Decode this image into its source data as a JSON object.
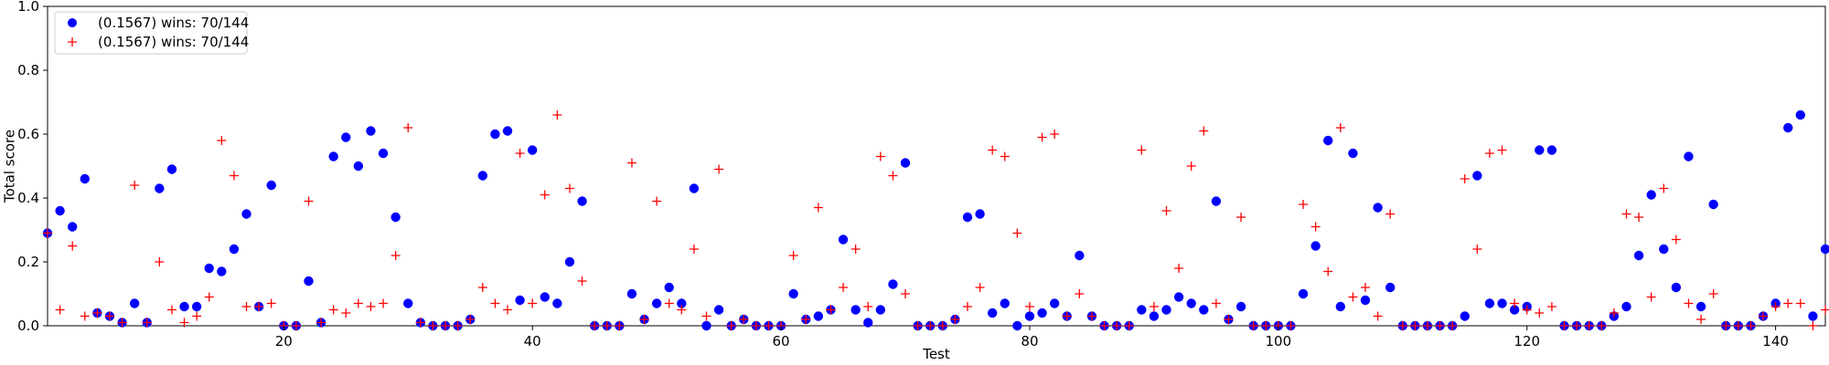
{
  "chart_data": {
    "type": "scatter",
    "xlabel": "Test",
    "ylabel": "Total score",
    "xlim": [
      1,
      144
    ],
    "ylim": [
      0,
      1.0
    ],
    "xticks": [
      20,
      40,
      60,
      80,
      100,
      120,
      140
    ],
    "yticks": [
      0.0,
      0.2,
      0.4,
      0.6,
      0.8,
      1.0
    ],
    "xtick_labels": [
      "20",
      "40",
      "60",
      "80",
      "100",
      "120",
      "140"
    ],
    "ytick_labels": [
      "0.0",
      "0.2",
      "0.4",
      "0.6",
      "0.8",
      "1.0"
    ],
    "grid": false,
    "legend_position": "top-left",
    "series": [
      {
        "name": "(0.1567) wins: 70/144",
        "marker": "circle",
        "color": "#0000ff",
        "x": [
          1,
          2,
          3,
          4,
          5,
          6,
          7,
          8,
          9,
          10,
          11,
          12,
          13,
          14,
          15,
          16,
          17,
          18,
          19,
          20,
          21,
          22,
          23,
          24,
          25,
          26,
          27,
          28,
          29,
          30,
          31,
          32,
          33,
          34,
          35,
          36,
          37,
          38,
          39,
          40,
          41,
          42,
          43,
          44,
          45,
          46,
          47,
          48,
          49,
          50,
          51,
          52,
          53,
          54,
          55,
          56,
          57,
          58,
          59,
          60,
          61,
          62,
          63,
          64,
          65,
          66,
          67,
          68,
          69,
          70,
          71,
          72,
          73,
          74,
          75,
          76,
          77,
          78,
          79,
          80,
          81,
          82,
          83,
          84,
          85,
          86,
          87,
          88,
          89,
          90,
          91,
          92,
          93,
          94,
          95,
          96,
          97,
          98,
          99,
          100,
          101,
          102,
          103,
          104,
          105,
          106,
          107,
          108,
          109,
          110,
          111,
          112,
          113,
          114,
          115,
          116,
          117,
          118,
          119,
          120,
          121,
          122,
          123,
          124,
          125,
          126,
          127,
          128,
          129,
          130,
          131,
          132,
          133,
          134,
          135,
          136,
          137,
          138,
          139,
          140,
          141,
          142,
          143,
          144
        ],
        "y": [
          0.29,
          0.36,
          0.31,
          0.46,
          0.04,
          0.03,
          0.01,
          0.07,
          0.01,
          0.43,
          0.49,
          0.06,
          0.06,
          0.18,
          0.17,
          0.24,
          0.35,
          0.06,
          0.44,
          0.0,
          0.0,
          0.14,
          0.01,
          0.53,
          0.59,
          0.5,
          0.61,
          0.54,
          0.34,
          0.07,
          0.01,
          0.0,
          0.0,
          0.0,
          0.02,
          0.47,
          0.6,
          0.61,
          0.08,
          0.55,
          0.09,
          0.07,
          0.2,
          0.39,
          0.0,
          0.0,
          0.0,
          0.1,
          0.02,
          0.07,
          0.12,
          0.07,
          0.43,
          0.0,
          0.05,
          0.0,
          0.02,
          0.0,
          0.0,
          0.0,
          0.1,
          0.02,
          0.03,
          0.05,
          0.27,
          0.05,
          0.01,
          0.05,
          0.13,
          0.51,
          0.0,
          0.0,
          0.0,
          0.02,
          0.34,
          0.35,
          0.04,
          0.07,
          0.0,
          0.03,
          0.04,
          0.07,
          0.03,
          0.22,
          0.03,
          0.0,
          0.0,
          0.0,
          0.05,
          0.03,
          0.05,
          0.09,
          0.07,
          0.05,
          0.39,
          0.02,
          0.06,
          0.0,
          0.0,
          0.0,
          0.0,
          0.1,
          0.25,
          0.58,
          0.06,
          0.54,
          0.08,
          0.37,
          0.12,
          0.0,
          0.0,
          0.0,
          0.0,
          0.0,
          0.03,
          0.47,
          0.07,
          0.07,
          0.05,
          0.06,
          0.55,
          0.55,
          0.0,
          0.0,
          0.0,
          0.0,
          0.03,
          0.06,
          0.22,
          0.41,
          0.24,
          0.12,
          0.53,
          0.06,
          0.38,
          0.0,
          0.0,
          0.0,
          0.03,
          0.07,
          0.62,
          0.66,
          0.03,
          0.24
        ]
      },
      {
        "name": "(0.1567) wins: 70/144",
        "marker": "plus",
        "color": "#ff0000",
        "x": [
          1,
          2,
          3,
          4,
          5,
          6,
          7,
          8,
          9,
          10,
          11,
          12,
          13,
          14,
          15,
          16,
          17,
          18,
          19,
          20,
          21,
          22,
          23,
          24,
          25,
          26,
          27,
          28,
          29,
          30,
          31,
          32,
          33,
          34,
          35,
          36,
          37,
          38,
          39,
          40,
          41,
          42,
          43,
          44,
          45,
          46,
          47,
          48,
          49,
          50,
          51,
          52,
          53,
          54,
          55,
          56,
          57,
          58,
          59,
          60,
          61,
          62,
          63,
          64,
          65,
          66,
          67,
          68,
          69,
          70,
          71,
          72,
          73,
          74,
          75,
          76,
          77,
          78,
          79,
          80,
          81,
          82,
          83,
          84,
          85,
          86,
          87,
          88,
          89,
          90,
          91,
          92,
          93,
          94,
          95,
          96,
          97,
          98,
          99,
          100,
          101,
          102,
          103,
          104,
          105,
          106,
          107,
          108,
          109,
          110,
          111,
          112,
          113,
          114,
          115,
          116,
          117,
          118,
          119,
          120,
          121,
          122,
          123,
          124,
          125,
          126,
          127,
          128,
          129,
          130,
          131,
          132,
          133,
          134,
          135,
          136,
          137,
          138,
          139,
          140,
          141,
          142,
          143,
          144
        ],
        "y": [
          0.29,
          0.05,
          0.25,
          0.03,
          0.04,
          0.03,
          0.01,
          0.44,
          0.01,
          0.2,
          0.05,
          0.01,
          0.03,
          0.09,
          0.58,
          0.47,
          0.06,
          0.06,
          0.07,
          0.0,
          0.0,
          0.39,
          0.01,
          0.05,
          0.04,
          0.07,
          0.06,
          0.07,
          0.22,
          0.62,
          0.01,
          0.0,
          0.0,
          0.0,
          0.02,
          0.12,
          0.07,
          0.05,
          0.54,
          0.07,
          0.41,
          0.66,
          0.43,
          0.14,
          0.0,
          0.0,
          0.0,
          0.51,
          0.02,
          0.39,
          0.07,
          0.05,
          0.24,
          0.03,
          0.49,
          0.0,
          0.02,
          0.0,
          0.0,
          0.0,
          0.22,
          0.02,
          0.37,
          0.05,
          0.12,
          0.24,
          0.06,
          0.53,
          0.47,
          0.1,
          0.0,
          0.0,
          0.0,
          0.02,
          0.06,
          0.12,
          0.55,
          0.53,
          0.29,
          0.06,
          0.59,
          0.6,
          0.03,
          0.1,
          0.03,
          0.0,
          0.0,
          0.0,
          0.55,
          0.06,
          0.36,
          0.18,
          0.5,
          0.61,
          0.07,
          0.02,
          0.34,
          0.0,
          0.0,
          0.0,
          0.0,
          0.38,
          0.31,
          0.17,
          0.62,
          0.09,
          0.12,
          0.03,
          0.35,
          0.0,
          0.0,
          0.0,
          0.0,
          0.0,
          0.46,
          0.24,
          0.54,
          0.55,
          0.07,
          0.05,
          0.04,
          0.06,
          0.0,
          0.0,
          0.0,
          0.0,
          0.04,
          0.35,
          0.34,
          0.09,
          0.43,
          0.27,
          0.07,
          0.02,
          0.1,
          0.0,
          0.0,
          0.0,
          0.03,
          0.06,
          0.07,
          0.07,
          0.0,
          0.05
        ]
      }
    ]
  }
}
